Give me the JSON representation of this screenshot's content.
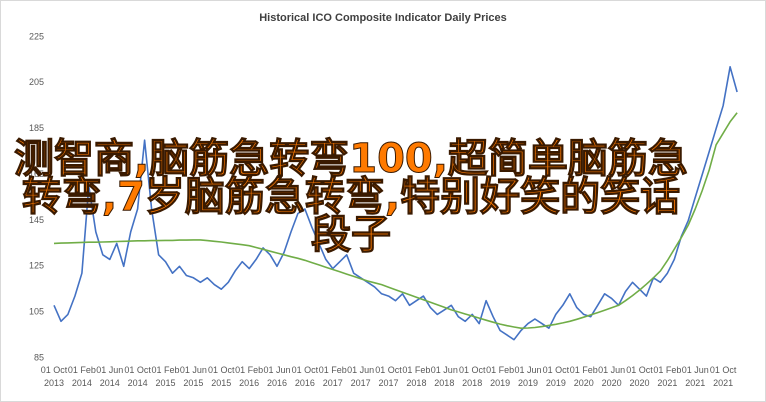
{
  "chart_data": {
    "type": "line",
    "title": "Historical ICO Composite Indicator Daily Prices",
    "categories": [
      "01 Oct 2013",
      null,
      null,
      null,
      "01 Feb 2014",
      null,
      null,
      null,
      "01 Jun 2014",
      null,
      null,
      null,
      "01 Oct 2014",
      null,
      null,
      null,
      "01 Feb 2015",
      null,
      null,
      null,
      "01 Jun 2015",
      null,
      null,
      null,
      "01 Oct 2015",
      null,
      null,
      null,
      "01 Feb 2016",
      null,
      null,
      null,
      "01 Jun 2016",
      null,
      null,
      null,
      "01 Oct 2016",
      null,
      null,
      null,
      "01 Feb 2017",
      null,
      null,
      null,
      "01 Jun 2017",
      null,
      null,
      null,
      "01 Oct 2017",
      null,
      null,
      null,
      "01 Feb 2018",
      null,
      null,
      null,
      "01 Jun 2018",
      null,
      null,
      null,
      "01 Oct 2018",
      null,
      null,
      null,
      "01 Feb 2019",
      null,
      null,
      null,
      "01 Jun 2019",
      null,
      null,
      null,
      "01 Oct 2019",
      null,
      null,
      null,
      "01 Feb 2020",
      null,
      null,
      null,
      "01 Jun 2020",
      null,
      null,
      null,
      "01 Oct 2020",
      null,
      null,
      null,
      "01 Feb 2021",
      null,
      null,
      null,
      "01 Jun 2021",
      null,
      null,
      null,
      "01 Oct 2021",
      null,
      null
    ],
    "series": [
      {
        "color": "#4472c4",
        "values": [
          108,
          101,
          104,
          112,
          122,
          160,
          140,
          130,
          128,
          135,
          125,
          140,
          150,
          180,
          150,
          130,
          127,
          122,
          125,
          121,
          120,
          118,
          120,
          117,
          115,
          118,
          123,
          127,
          124,
          128,
          133,
          130,
          125,
          131,
          140,
          148,
          150,
          142,
          135,
          128,
          124,
          127,
          130,
          122,
          120,
          118,
          116,
          113,
          112,
          110,
          113,
          108,
          110,
          112,
          107,
          104,
          106,
          108,
          103,
          101,
          104,
          100,
          110,
          103,
          97,
          95,
          93,
          97,
          100,
          102,
          100,
          98,
          104,
          108,
          113,
          107,
          104,
          103,
          108,
          113,
          111,
          108,
          114,
          118,
          115,
          112,
          120,
          118,
          122,
          128,
          138,
          145,
          155,
          165,
          175,
          185,
          195,
          212,
          201
        ]
      },
      {
        "color": "#70ad47",
        "values": [
          135,
          135.1,
          135.2,
          135.3,
          135.4,
          135.5,
          135.5,
          135.6,
          135.7,
          135.8,
          135.9,
          136,
          136.1,
          136.1,
          136.2,
          136.2,
          136.3,
          136.3,
          136.4,
          136.4,
          136.5,
          136.5,
          136.2,
          135.9,
          135.6,
          135.2,
          134.8,
          134.4,
          134,
          133.2,
          132.4,
          131.6,
          130.8,
          130,
          129.2,
          128.5,
          127.6,
          126.6,
          125.6,
          124.6,
          123.6,
          122.6,
          121.6,
          120.6,
          119.6,
          118.6,
          117.8,
          117,
          115.9,
          114.8,
          113.7,
          112.6,
          111.5,
          110.4,
          109.3,
          108.2,
          107.1,
          106,
          105.1,
          104.2,
          103.3,
          102.4,
          101.5,
          100.6,
          99.8,
          99.1,
          98.5,
          98,
          98.1,
          98.3,
          98.7,
          99.2,
          99.7,
          100.3,
          101,
          101.9,
          102.8,
          103.8,
          104.8,
          105.8,
          106.9,
          108,
          110,
          112.2,
          114.6,
          117.2,
          120,
          123,
          127.5,
          132.5,
          137.5,
          143,
          150,
          158,
          167,
          178,
          183,
          188,
          192
        ]
      }
    ],
    "ylim": [
      85,
      225
    ],
    "yticks": [
      85,
      105,
      125,
      145,
      165,
      185,
      205,
      225
    ],
    "grid": false
  },
  "overlay_text": "测智商,脑筋急转弯100,超简单脑筋急转弯,7岁脑筋急转弯,特别好笑的笑话段子"
}
